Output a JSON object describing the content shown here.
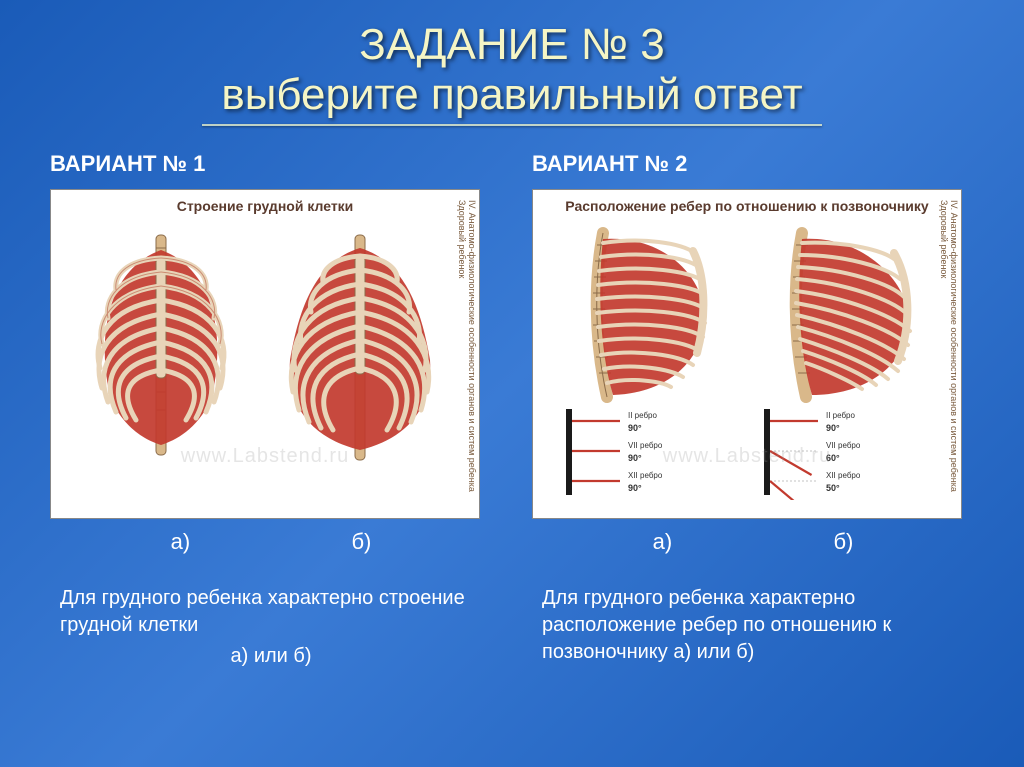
{
  "title": {
    "line1": "ЗАДАНИЕ № 3",
    "line2": "выберите правильный ответ"
  },
  "variants": {
    "v1": {
      "heading": "ВАРИАНТ № 1",
      "panel_title": "Строение грудной клетки",
      "side_text": "IV. Анатомо-физиологические особенности органов и систем ребенка   Здоровый ребенок",
      "watermark": "www.Labstend.ru",
      "label_a": "а)",
      "label_b": "б)",
      "question": "Для грудного ребенка характерно строение грудной клетки",
      "answer_opts": "а)     или     б)"
    },
    "v2": {
      "heading": "ВАРИАНТ № 2",
      "panel_title": "Расположение ребер по отношению к позвоночнику",
      "side_text": "IV. Анатомо-физиологические особенности органов и систем ребенка   Здоровый ребенок",
      "watermark": "www.Labstend.ru",
      "label_a": "а)",
      "label_b": "б)",
      "question": "Для грудного ребенка характерно расположение ребер по отношению к позвоночнику  а)   или   б)",
      "answer_opts": ""
    }
  },
  "ribcage": {
    "bone_color": "#e8d4b8",
    "muscle_color": "#c23a2e",
    "spine_color": "#d9b88a",
    "outline": "#8a6b4a",
    "rib_lines": "#b0452e"
  },
  "angles": {
    "line_color": "#c23a2e",
    "spine_bar": "#1a1a1a",
    "a_labels": [
      "II ребро",
      "VII ребро",
      "XII ребро"
    ],
    "a_degrees": [
      "90°",
      "90°",
      "90°"
    ],
    "a_angles_deg": [
      0,
      0,
      0
    ],
    "b_labels": [
      "II ребро",
      "VII ребро",
      "XII ребро"
    ],
    "b_degrees": [
      "90°",
      "60°",
      "50°"
    ],
    "b_angles_deg": [
      0,
      30,
      40
    ]
  },
  "style": {
    "title_color": "#f5f5c5",
    "bg_start": "#1a5bb8",
    "bg_end": "#3a7bd5"
  }
}
